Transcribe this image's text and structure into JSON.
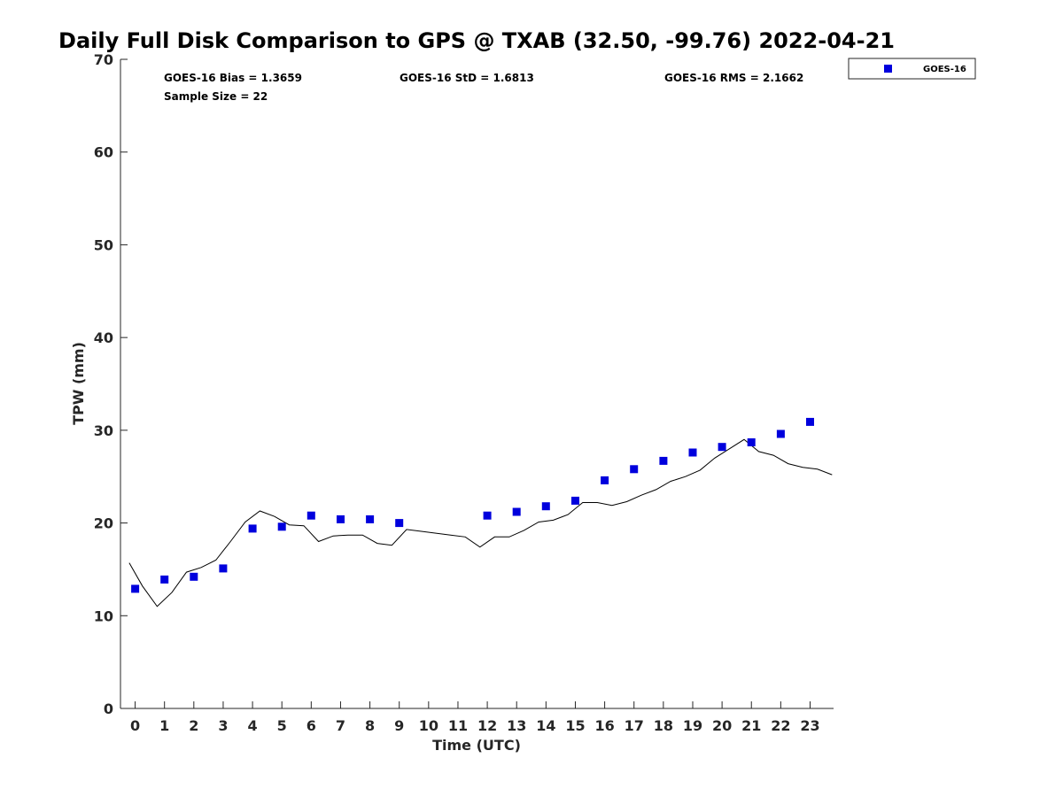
{
  "chart_data": {
    "type": "scatter",
    "title": "Daily Full Disk Comparison to GPS @ TXAB (32.50, -99.76) 2022-04-21",
    "xlabel": "Time (UTC)",
    "ylabel": "TPW (mm)",
    "xlim": [
      -0.5,
      23.8
    ],
    "ylim": [
      0,
      70
    ],
    "xticks": [
      0,
      1,
      2,
      3,
      4,
      5,
      6,
      7,
      8,
      9,
      10,
      11,
      12,
      13,
      14,
      15,
      16,
      17,
      18,
      19,
      20,
      21,
      22,
      23
    ],
    "yticks": [
      0,
      10,
      20,
      30,
      40,
      50,
      60,
      70
    ],
    "grid": false,
    "legend_position": "top-right outside",
    "stats": {
      "bias": "GOES-16 Bias = 1.3659",
      "std": "GOES-16 StD = 1.6813",
      "rms": "GOES-16 RMS = 2.1662",
      "sample": "Sample Size = 22"
    },
    "series": [
      {
        "name": "GOES-16",
        "kind": "scatter",
        "color": "#0000dd",
        "x": [
          0,
          1,
          2,
          3,
          4,
          5,
          6,
          7,
          8,
          9,
          12,
          13,
          14,
          15,
          16,
          17,
          18,
          19,
          20,
          21,
          22,
          23
        ],
        "y": [
          12.9,
          13.9,
          14.2,
          15.1,
          19.4,
          19.6,
          20.8,
          20.4,
          20.4,
          20.0,
          20.8,
          21.2,
          21.8,
          22.4,
          24.6,
          25.8,
          26.7,
          27.6,
          28.2,
          28.7,
          29.6,
          30.9
        ]
      },
      {
        "kind": "line",
        "color": "#000000",
        "x": [
          -0.2,
          0.25,
          0.75,
          1.25,
          1.75,
          2.25,
          2.75,
          3.25,
          3.75,
          4.25,
          4.75,
          5.25,
          5.75,
          6.25,
          6.75,
          7.25,
          7.75,
          8.25,
          8.75,
          9.25,
          9.75,
          10.25,
          10.75,
          11.25,
          11.75,
          12.25,
          12.75,
          13.25,
          13.75,
          14.25,
          14.75,
          15.25,
          15.75,
          16.25,
          16.75,
          17.25,
          17.75,
          18.25,
          18.75,
          19.25,
          19.75,
          20.25,
          20.75,
          21.25,
          21.75,
          22.25,
          22.75,
          23.25,
          23.75
        ],
        "y": [
          15.7,
          13.2,
          11.0,
          12.5,
          14.7,
          15.2,
          16.0,
          18.0,
          20.1,
          21.3,
          20.7,
          19.8,
          19.7,
          18.0,
          18.6,
          18.7,
          18.7,
          17.8,
          17.6,
          19.3,
          19.1,
          18.9,
          18.7,
          18.5,
          17.4,
          18.5,
          18.5,
          19.2,
          20.1,
          20.3,
          20.9,
          22.2,
          22.2,
          21.9,
          22.3,
          23.0,
          23.6,
          24.5,
          25.0,
          25.7,
          27.0,
          28.0,
          29.0,
          27.7,
          27.3,
          26.4,
          26.0,
          25.8,
          25.2
        ]
      }
    ]
  }
}
